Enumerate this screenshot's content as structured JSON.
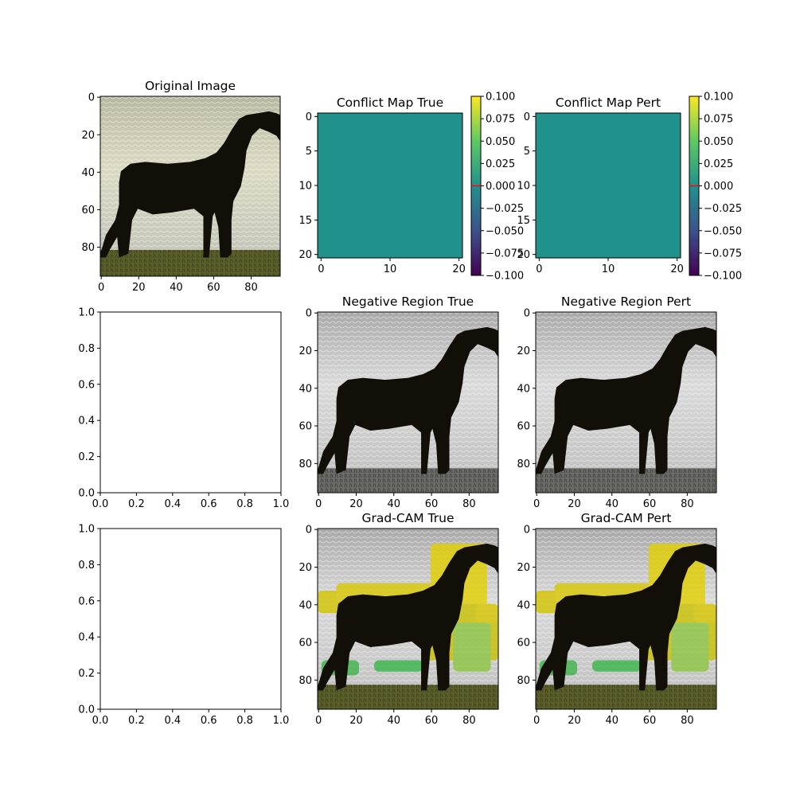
{
  "figure": {
    "panels": [
      {
        "key": "p00",
        "title": "Original Image"
      },
      {
        "key": "p01",
        "title": "Conflict Map True"
      },
      {
        "key": "p02",
        "title": "Conflict Map Pert"
      },
      {
        "key": "p10",
        "title": ""
      },
      {
        "key": "p11",
        "title": "Negative Region True"
      },
      {
        "key": "p12",
        "title": "Negative Region Pert"
      },
      {
        "key": "p20",
        "title": ""
      },
      {
        "key": "p21",
        "title": "Grad-CAM True"
      },
      {
        "key": "p22",
        "title": "Grad-CAM Pert"
      }
    ]
  },
  "chart_data": [
    {
      "id": "p00",
      "type": "image",
      "title": "Original Image",
      "content": "photo of a dark pony on grass in front of the sea",
      "x_ticks": [
        "0",
        "20",
        "40",
        "60",
        "80"
      ],
      "y_ticks": [
        "0",
        "20",
        "40",
        "60",
        "80"
      ],
      "xlim": [
        -0.5,
        95.5
      ],
      "ylim": [
        95.5,
        -0.5
      ]
    },
    {
      "id": "p01",
      "type": "heatmap",
      "title": "Conflict Map True",
      "colormap": "viridis",
      "uniform_value": 0.0,
      "x_ticks": [
        "0",
        "10",
        "20"
      ],
      "y_ticks": [
        "0",
        "5",
        "10",
        "15",
        "20"
      ],
      "xlim": [
        -0.5,
        20.5
      ],
      "ylim": [
        20.5,
        -0.5
      ],
      "colorbar": {
        "ticks": [
          "0.100",
          "0.075",
          "0.050",
          "0.025",
          "0.000",
          "−0.025",
          "−0.050",
          "−0.075",
          "−0.100"
        ],
        "range": [
          -0.1,
          0.1
        ],
        "marker": 0.0,
        "marker_color": "#ff0000"
      }
    },
    {
      "id": "p02",
      "type": "heatmap",
      "title": "Conflict Map Pert",
      "colormap": "viridis",
      "uniform_value": 0.0,
      "x_ticks": [
        "0",
        "10",
        "20"
      ],
      "y_ticks": [
        "0",
        "5",
        "10",
        "15",
        "20"
      ],
      "xlim": [
        -0.5,
        20.5
      ],
      "ylim": [
        20.5,
        -0.5
      ],
      "colorbar": {
        "ticks": [
          "0.100",
          "0.075",
          "0.050",
          "0.025",
          "0.000",
          "−0.025",
          "−0.050",
          "−0.075",
          "−0.100"
        ],
        "range": [
          -0.1,
          0.1
        ],
        "marker": 0.0,
        "marker_color": "#ff0000"
      }
    },
    {
      "id": "p10",
      "type": "empty",
      "title": "",
      "x_ticks": [
        "0.0",
        "0.2",
        "0.4",
        "0.6",
        "0.8",
        "1.0"
      ],
      "y_ticks": [
        "0.0",
        "0.2",
        "0.4",
        "0.6",
        "0.8",
        "1.0"
      ],
      "xlim": [
        0,
        1
      ],
      "ylim": [
        0,
        1
      ]
    },
    {
      "id": "p11",
      "type": "image",
      "title": "Negative Region True",
      "content": "grayscale pony image",
      "x_ticks": [
        "0",
        "20",
        "40",
        "60",
        "80"
      ],
      "y_ticks": [
        "0",
        "20",
        "40",
        "60",
        "80"
      ],
      "xlim": [
        -0.5,
        95.5
      ],
      "ylim": [
        95.5,
        -0.5
      ]
    },
    {
      "id": "p12",
      "type": "image",
      "title": "Negative Region Pert",
      "content": "grayscale pony image",
      "x_ticks": [
        "0",
        "20",
        "40",
        "60",
        "80"
      ],
      "y_ticks": [
        "0",
        "20",
        "40",
        "60",
        "80"
      ],
      "xlim": [
        -0.5,
        95.5
      ],
      "ylim": [
        95.5,
        -0.5
      ]
    },
    {
      "id": "p20",
      "type": "empty",
      "title": "",
      "x_ticks": [
        "0.0",
        "0.2",
        "0.4",
        "0.6",
        "0.8",
        "1.0"
      ],
      "y_ticks": [
        "0.0",
        "0.2",
        "0.4",
        "0.6",
        "0.8",
        "1.0"
      ],
      "xlim": [
        0,
        1
      ],
      "ylim": [
        0,
        1
      ]
    },
    {
      "id": "p21",
      "type": "image",
      "title": "Grad-CAM True",
      "content": "pony image with yellow/green heat overlay",
      "x_ticks": [
        "0",
        "20",
        "40",
        "60",
        "80"
      ],
      "y_ticks": [
        "0",
        "20",
        "40",
        "60",
        "80"
      ],
      "xlim": [
        -0.5,
        95.5
      ],
      "ylim": [
        95.5,
        -0.5
      ]
    },
    {
      "id": "p22",
      "type": "image",
      "title": "Grad-CAM Pert",
      "content": "pony image with yellow/green heat overlay",
      "x_ticks": [
        "0",
        "20",
        "40",
        "60",
        "80"
      ],
      "y_ticks": [
        "0",
        "20",
        "40",
        "60",
        "80"
      ],
      "xlim": [
        -0.5,
        95.5
      ],
      "ylim": [
        95.5,
        -0.5
      ]
    }
  ],
  "colors": {
    "viridis_mid": "#21918c",
    "colorbar_marker": "#ff0000",
    "grass": "#5c5e2a",
    "horse": "#120e08"
  }
}
